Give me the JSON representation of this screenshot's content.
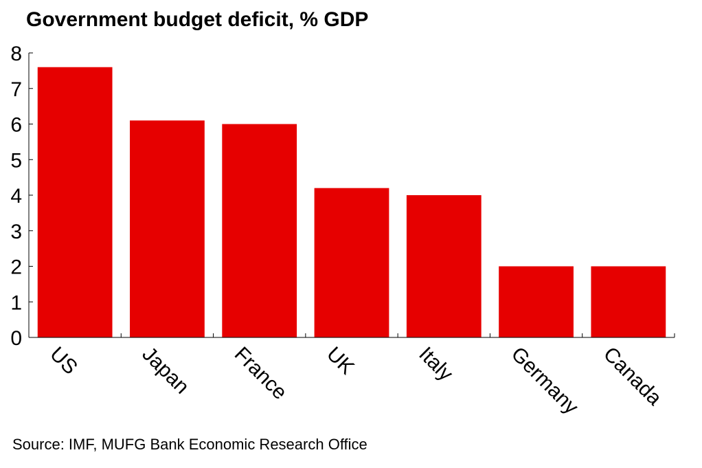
{
  "title": "Government budget deficit, % GDP",
  "source": "Source: IMF, MUFG Bank Economic Research Office",
  "colors": {
    "bar": "#e60000",
    "axis": "#000000",
    "background": "#ffffff"
  },
  "chart_data": {
    "type": "bar",
    "title": "Government budget deficit, % GDP",
    "categories": [
      "US",
      "Japan",
      "France",
      "UK",
      "Italy",
      "Germany",
      "Canada"
    ],
    "values": [
      7.6,
      6.1,
      6.0,
      4.2,
      4.0,
      2.0,
      2.0
    ],
    "xlabel": "",
    "ylabel": "",
    "ylim": [
      0,
      8
    ],
    "yticks": [
      "0",
      "1",
      "2",
      "3",
      "4",
      "5",
      "6",
      "7",
      "8"
    ],
    "grid": false,
    "legend": "none"
  }
}
